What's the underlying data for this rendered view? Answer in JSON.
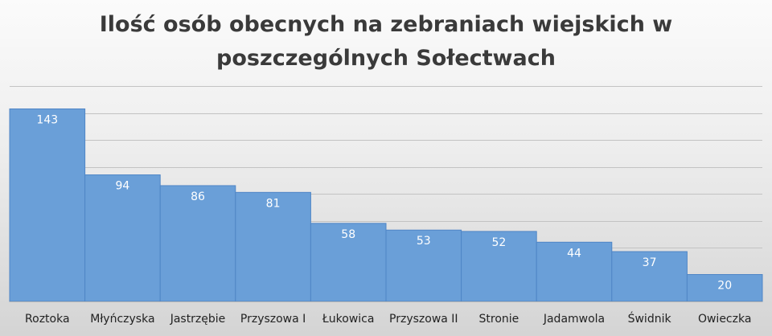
{
  "chart_data": {
    "type": "bar",
    "title": "Ilość osób obecnych na zebraniach wiejskich w\nposzczególnych Sołectwach",
    "xlabel": "",
    "ylabel": "",
    "categories": [
      "Roztoka",
      "Młyńczyska",
      "Jastrzębie",
      "Przyszowa I",
      "Łukowica",
      "Przyszowa II",
      "Stronie",
      "Jadamwola",
      "Świdnik",
      "Owieczka"
    ],
    "values": [
      143,
      94,
      86,
      81,
      58,
      53,
      52,
      44,
      37,
      20
    ],
    "ylim": [
      0,
      160
    ],
    "grid": true,
    "legend": "none",
    "bar_color": "#6a9fd8",
    "bar_edge_color": "#4f86c6",
    "grid_color": "#c3c3c3",
    "label_color": "#ffffff",
    "tick_color": "#222222"
  }
}
